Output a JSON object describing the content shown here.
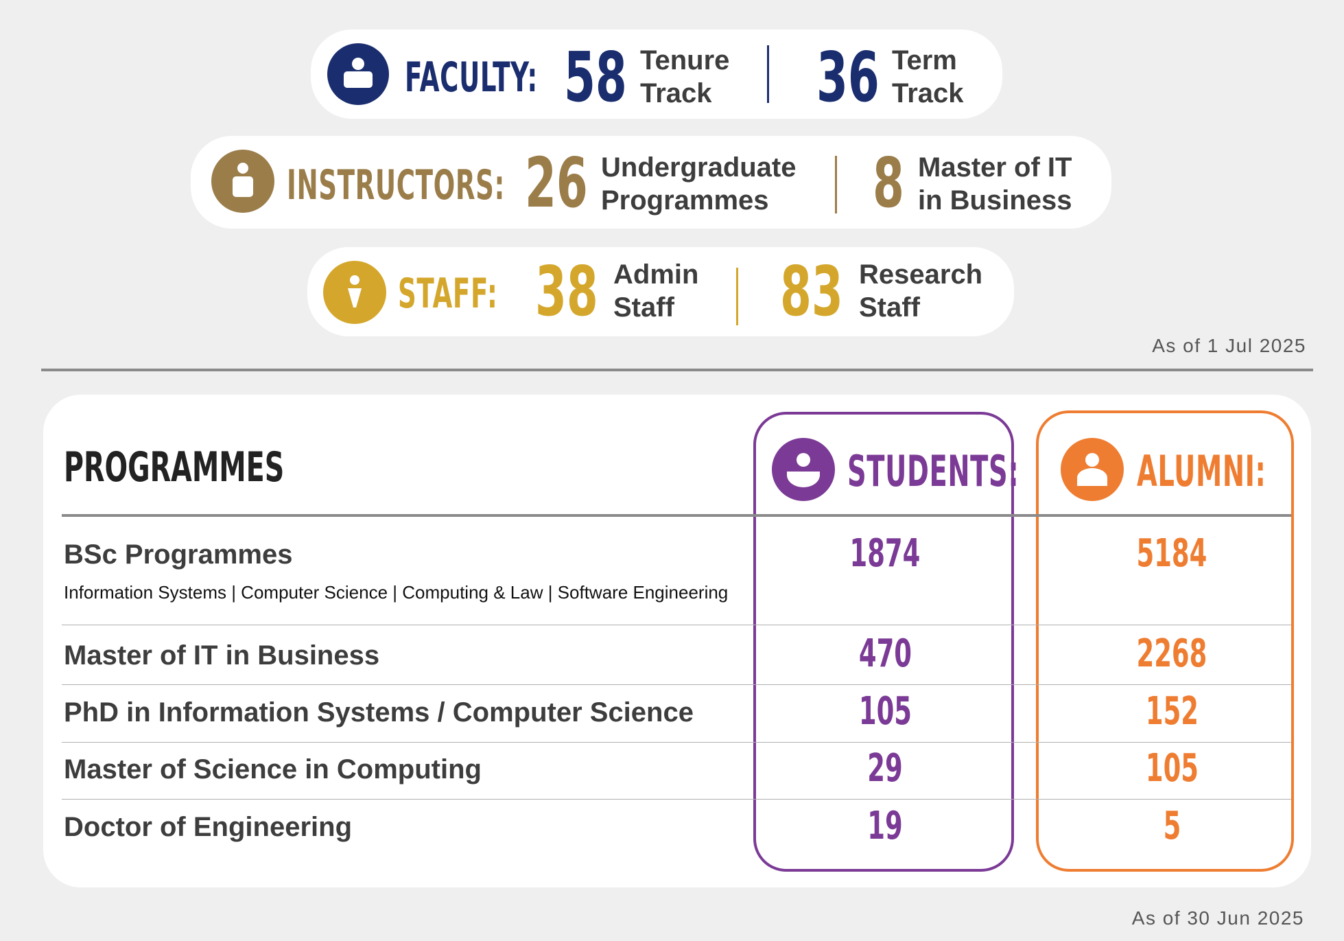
{
  "colors": {
    "faculty": "#1a2d6e",
    "instructors": "#9b7d4a",
    "staff": "#d4a72c",
    "students": "#7b3a96",
    "alumni": "#ee7d32"
  },
  "icons": {
    "faculty": "person-icon",
    "instructors": "person-icon",
    "staff": "person-icon",
    "students": "person-icon",
    "alumni": "person-icon"
  },
  "faculty": {
    "label": "FACULTY:",
    "a_value": "58",
    "a_line1": "Tenure",
    "a_line2": "Track",
    "b_value": "36",
    "b_line1": "Term",
    "b_line2": "Track"
  },
  "instructors": {
    "label": "INSTRUCTORS:",
    "a_value": "26",
    "a_line1": "Undergraduate",
    "a_line2": "Programmes",
    "b_value": "8",
    "b_line1": "Master of IT",
    "b_line2": "in Business"
  },
  "staff": {
    "label": "STAFF:",
    "a_value": "38",
    "a_line1": "Admin",
    "a_line2": "Staff",
    "b_value": "83",
    "b_line1": "Research",
    "b_line2": "Staff"
  },
  "as_of_top": "As of 1 Jul 2025",
  "programmes": {
    "title": "PROGRAMMES",
    "students_label": "STUDENTS:",
    "alumni_label": "ALUMNI:",
    "rows": [
      {
        "name": "BSc Programmes",
        "sub": "Information Systems | Computer Science | Computing & Law | Software Engineering",
        "students": "1874",
        "alumni": "5184"
      },
      {
        "name": "Master of IT in Business",
        "students": "470",
        "alumni": "2268"
      },
      {
        "name": "PhD in Information Systems / Computer Science",
        "students": "105",
        "alumni": "152"
      },
      {
        "name": "Master of Science in Computing",
        "students": "29",
        "alumni": "105"
      },
      {
        "name": "Doctor of Engineering",
        "students": "19",
        "alumni": "5"
      }
    ]
  },
  "as_of_bottom": "As of 30 Jun 2025"
}
